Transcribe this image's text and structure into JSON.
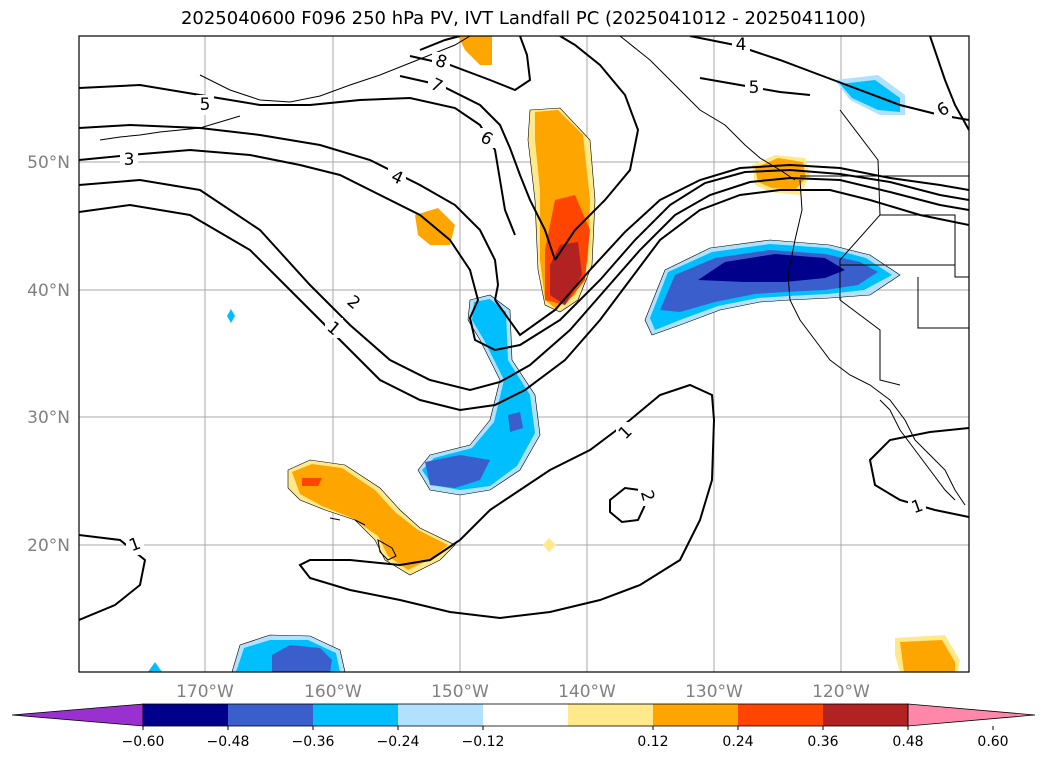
{
  "title": "2025040600 F096 250 hPa PV, IVT Landfall PC (2025041012 - 2025041100)",
  "lat_labels": [
    "50°N",
    "40°N",
    "30°N",
    "20°N"
  ],
  "lon_labels": [
    "170°W",
    "160°W",
    "150°W",
    "140°W",
    "130°W",
    "120°W"
  ],
  "colorbar": {
    "ticks": [
      "−0.60",
      "−0.48",
      "−0.36",
      "−0.24",
      "−0.12",
      "0.12",
      "0.24",
      "0.36",
      "0.48",
      "0.60"
    ],
    "colors": [
      "#9b30d0",
      "#00008b",
      "#3a5fcd",
      "#00bfff",
      "#b0e2ff",
      "#ffffff",
      "#ffe98a",
      "#ffa500",
      "#ff4500",
      "#b22222",
      "#ff88aa"
    ]
  },
  "contour_labels": [
    "1",
    "2",
    "3",
    "4",
    "5",
    "6",
    "7",
    "8",
    "4",
    "5",
    "6",
    "1",
    "2",
    "1",
    "1"
  ],
  "colors": {
    "grid": "#a8a8a8",
    "contour": "#000000"
  }
}
